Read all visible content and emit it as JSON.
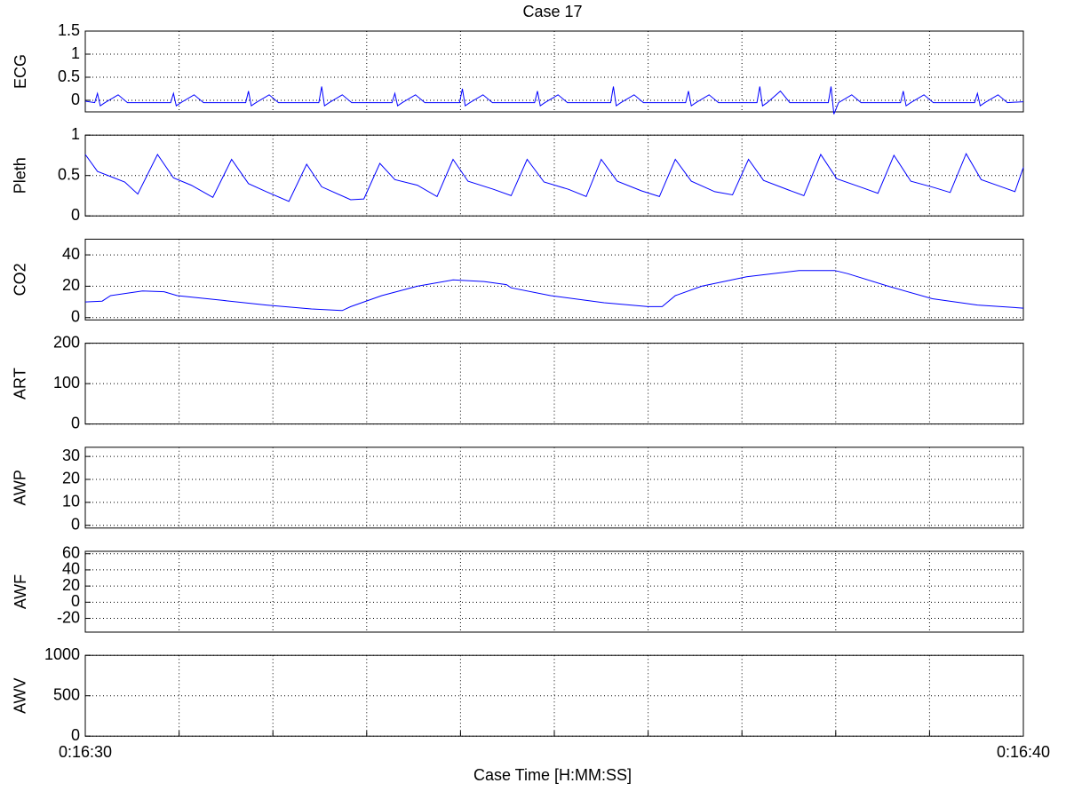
{
  "figure": {
    "title": "Case 17",
    "xlabel": "Case Time [H:MM:SS]",
    "xlim": [
      990,
      1000
    ],
    "xticks": [
      {
        "value": 990,
        "label": "0:16:30"
      },
      {
        "value": 991,
        "label": null
      },
      {
        "value": 992,
        "label": null
      },
      {
        "value": 993,
        "label": null
      },
      {
        "value": 994,
        "label": null
      },
      {
        "value": 995,
        "label": null
      },
      {
        "value": 996,
        "label": null
      },
      {
        "value": 997,
        "label": null
      },
      {
        "value": 998,
        "label": null
      },
      {
        "value": 999,
        "label": null
      },
      {
        "value": 1000,
        "label": "0:16:40"
      }
    ]
  },
  "chart_data": [
    {
      "type": "line",
      "ylabel": "ECG",
      "ylim": [
        -0.25,
        1.5
      ],
      "yticks": [
        0,
        0.5,
        1,
        1.5
      ],
      "grid": true,
      "color": "#0000ff",
      "x": [
        990.0,
        990.1,
        990.13,
        990.16,
        990.21,
        990.35,
        990.45,
        990.91,
        990.94,
        990.97,
        991.02,
        991.16,
        991.26,
        991.71,
        991.74,
        991.77,
        991.82,
        991.96,
        992.06,
        992.49,
        992.52,
        992.55,
        992.6,
        992.74,
        992.84,
        993.27,
        993.3,
        993.33,
        993.38,
        993.52,
        993.62,
        993.99,
        994.02,
        994.05,
        994.1,
        994.24,
        994.34,
        994.79,
        994.82,
        994.85,
        994.9,
        995.04,
        995.14,
        995.6,
        995.63,
        995.66,
        995.71,
        995.85,
        995.95,
        996.4,
        996.43,
        996.46,
        996.51,
        996.65,
        996.75,
        997.16,
        997.19,
        997.22,
        997.27,
        997.41,
        997.51,
        997.92,
        997.95,
        997.98,
        998.03,
        998.17,
        998.27,
        998.69,
        998.72,
        998.75,
        998.8,
        998.94,
        999.04,
        999.48,
        999.51,
        999.54,
        999.59,
        999.73,
        999.83,
        1000.0
      ],
      "values": [
        -0.02,
        -0.05,
        0.15,
        -0.12,
        -0.05,
        0.12,
        -0.05,
        -0.05,
        0.15,
        -0.12,
        -0.05,
        0.12,
        -0.05,
        -0.05,
        0.2,
        -0.12,
        -0.05,
        0.12,
        -0.05,
        -0.05,
        0.3,
        -0.12,
        -0.05,
        0.12,
        -0.05,
        -0.05,
        0.15,
        -0.12,
        -0.05,
        0.12,
        -0.05,
        -0.05,
        0.25,
        -0.12,
        -0.05,
        0.12,
        -0.05,
        -0.05,
        0.2,
        -0.12,
        -0.05,
        0.12,
        -0.05,
        -0.05,
        0.3,
        -0.12,
        -0.05,
        0.12,
        -0.05,
        -0.05,
        0.2,
        -0.12,
        -0.05,
        0.12,
        -0.05,
        -0.05,
        0.3,
        -0.12,
        -0.05,
        0.2,
        -0.05,
        -0.05,
        0.3,
        -0.3,
        -0.05,
        0.12,
        -0.05,
        -0.05,
        0.2,
        -0.12,
        -0.05,
        0.12,
        -0.05,
        -0.05,
        0.15,
        -0.12,
        -0.05,
        0.12,
        -0.05,
        -0.03
      ]
    },
    {
      "type": "line",
      "ylabel": "Pleth",
      "ylim": [
        0,
        1
      ],
      "yticks": [
        0,
        0.5,
        1
      ],
      "grid": true,
      "color": "#0000ff",
      "x": [
        990.0,
        990.13,
        990.42,
        990.56,
        990.77,
        990.94,
        991.13,
        991.36,
        991.56,
        991.74,
        991.93,
        992.17,
        992.36,
        992.52,
        992.83,
        992.97,
        993.14,
        993.3,
        993.54,
        993.75,
        993.92,
        994.08,
        994.35,
        994.54,
        994.71,
        994.89,
        995.15,
        995.34,
        995.5,
        995.67,
        995.93,
        996.12,
        996.29,
        996.46,
        996.71,
        996.9,
        997.07,
        997.23,
        997.5,
        997.66,
        997.84,
        998.01,
        998.28,
        998.45,
        998.62,
        998.8,
        999.05,
        999.22,
        999.39,
        999.55,
        999.79,
        999.91,
        1000.0
      ],
      "values": [
        0.76,
        0.55,
        0.42,
        0.27,
        0.76,
        0.47,
        0.38,
        0.23,
        0.7,
        0.4,
        0.3,
        0.18,
        0.64,
        0.36,
        0.2,
        0.21,
        0.65,
        0.45,
        0.38,
        0.24,
        0.7,
        0.43,
        0.33,
        0.25,
        0.7,
        0.42,
        0.33,
        0.24,
        0.7,
        0.43,
        0.31,
        0.24,
        0.7,
        0.43,
        0.3,
        0.26,
        0.7,
        0.44,
        0.32,
        0.25,
        0.76,
        0.46,
        0.35,
        0.28,
        0.75,
        0.43,
        0.35,
        0.29,
        0.77,
        0.45,
        0.35,
        0.3,
        0.6
      ]
    },
    {
      "type": "line",
      "ylabel": "CO2",
      "ylim": [
        -1.5,
        50
      ],
      "yticks": [
        0,
        20,
        40
      ],
      "grid": true,
      "color": "#0000ff",
      "x": [
        990.0,
        990.18,
        990.27,
        990.61,
        990.84,
        990.98,
        991.46,
        991.93,
        992.41,
        992.74,
        992.83,
        993.16,
        993.54,
        993.92,
        994.25,
        994.49,
        994.54,
        994.96,
        995.53,
        996.0,
        996.15,
        996.29,
        996.57,
        997.05,
        997.61,
        997.99,
        998.13,
        998.56,
        999.03,
        999.51,
        1000.0
      ],
      "values": [
        10,
        10.5,
        14,
        17,
        16.5,
        14,
        11,
        8,
        5.5,
        4.5,
        7,
        14,
        20,
        24,
        23,
        21,
        19,
        14,
        9.5,
        7,
        7,
        14,
        20,
        26,
        30,
        30,
        28,
        20,
        12,
        8,
        6
      ]
    },
    {
      "type": "line",
      "ylabel": "ART",
      "ylim": [
        0,
        200
      ],
      "yticks": [
        0,
        100,
        200
      ],
      "grid": true
    },
    {
      "type": "line",
      "ylabel": "AWP",
      "ylim": [
        -1.2,
        34
      ],
      "yticks": [
        0,
        10,
        20,
        30
      ],
      "grid": true
    },
    {
      "type": "line",
      "ylabel": "AWF",
      "ylim": [
        -37,
        63
      ],
      "yticks": [
        -20,
        0,
        20,
        40,
        60
      ],
      "grid": true
    },
    {
      "type": "line",
      "ylabel": "AWV",
      "ylim": [
        0,
        1000
      ],
      "yticks": [
        0,
        500,
        1000
      ],
      "grid": true
    }
  ]
}
